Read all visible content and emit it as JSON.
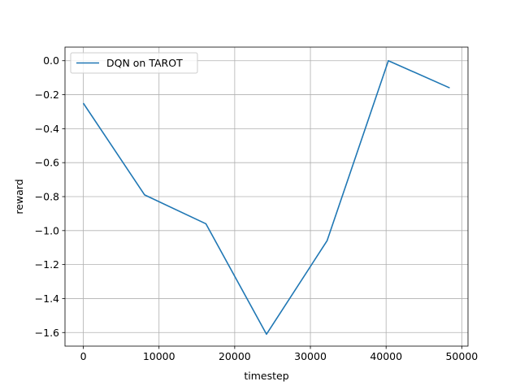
{
  "chart_data": {
    "type": "line",
    "title": "",
    "xlabel": "timestep",
    "ylabel": "reward",
    "xlim": [
      -2420,
      50820
    ],
    "ylim": [
      -1.68,
      0.08
    ],
    "xticks": [
      0,
      10000,
      20000,
      30000,
      40000,
      50000
    ],
    "yticks": [
      -1.6,
      -1.4,
      -1.2,
      -1.0,
      -0.8,
      -0.6,
      -0.4,
      -0.2,
      0.0
    ],
    "xtick_labels": [
      "0",
      "10000",
      "20000",
      "30000",
      "40000",
      "50000"
    ],
    "ytick_labels": [
      "−1.6",
      "−1.4",
      "−1.2",
      "−1.0",
      "−0.8",
      "−0.6",
      "−0.4",
      "−0.2",
      "0.0"
    ],
    "grid": true,
    "legend": {
      "placement": "top-left"
    },
    "series": [
      {
        "name": "DQN on TAROT",
        "color": "#1f77b4",
        "x": [
          0,
          8100,
          16200,
          24200,
          32200,
          40300,
          48400
        ],
        "y": [
          -0.25,
          -0.79,
          -0.96,
          -1.61,
          -1.06,
          0.0,
          -0.16
        ]
      }
    ]
  }
}
